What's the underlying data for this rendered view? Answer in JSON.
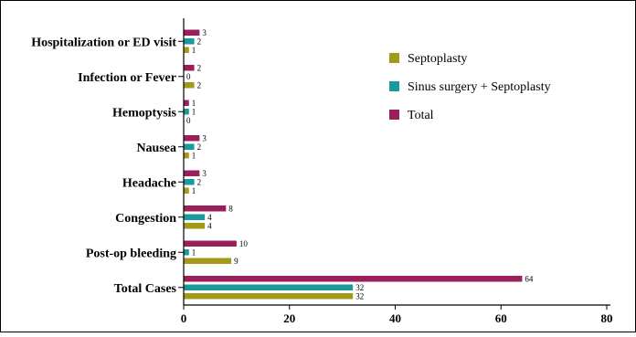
{
  "chart_data": {
    "type": "bar",
    "orientation": "horizontal",
    "categories": [
      "Total Cases",
      "Post-op bleeding",
      "Congestion",
      "Headache",
      "Nausea",
      "Hemoptysis",
      "Infection or Fever",
      "Hospitalization or ED visit"
    ],
    "series": [
      {
        "name": "Septoplasty",
        "color": "#a39a1a",
        "values": [
          32,
          9,
          4,
          1,
          1,
          0,
          2,
          1
        ]
      },
      {
        "name": "Sinus surgery + Septoplasty",
        "color": "#1a9a9a",
        "values": [
          32,
          1,
          4,
          2,
          2,
          1,
          0,
          2
        ]
      },
      {
        "name": "Total",
        "color": "#9a1f5a",
        "values": [
          64,
          10,
          8,
          3,
          3,
          1,
          2,
          3
        ]
      }
    ],
    "xlim": [
      0,
      80
    ],
    "xticks": [
      "0",
      "20",
      "40",
      "60",
      "80"
    ],
    "legend_position": "top-right",
    "grid": false,
    "title": "",
    "xlabel": "",
    "ylabel": ""
  }
}
